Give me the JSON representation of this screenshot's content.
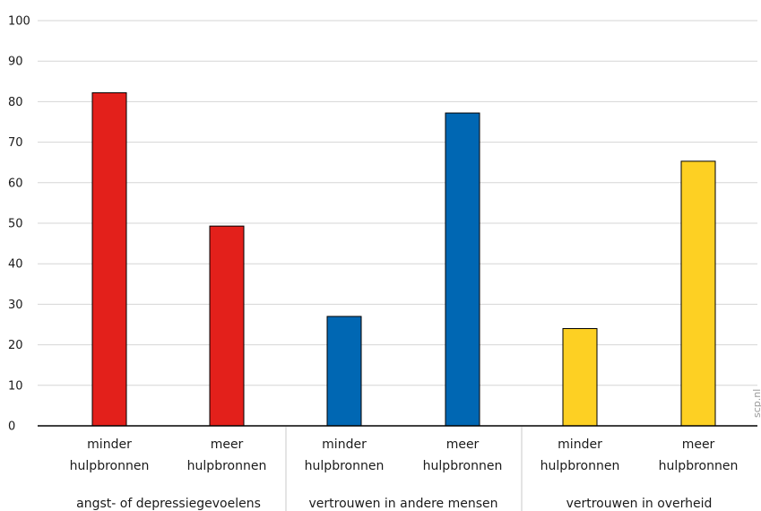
{
  "chart_data": {
    "type": "bar",
    "ylim": [
      0,
      100
    ],
    "yticks": [
      0,
      10,
      20,
      30,
      40,
      50,
      60,
      70,
      80,
      90,
      100
    ],
    "grid": true,
    "bars": [
      {
        "group": 0,
        "label": [
          "minder",
          "hulpbronnen"
        ],
        "value": 82.2,
        "color": "#e3201b"
      },
      {
        "group": 0,
        "label": [
          "meer",
          "hulpbronnen"
        ],
        "value": 49.3,
        "color": "#e3201b"
      },
      {
        "group": 1,
        "label": [
          "minder",
          "hulpbronnen"
        ],
        "value": 27.0,
        "color": "#0067b3"
      },
      {
        "group": 1,
        "label": [
          "meer",
          "hulpbronnen"
        ],
        "value": 77.2,
        "color": "#0067b3"
      },
      {
        "group": 2,
        "label": [
          "minder",
          "hulpbronnen"
        ],
        "value": 24.0,
        "color": "#fdd023"
      },
      {
        "group": 2,
        "label": [
          "meer",
          "hulpbronnen"
        ],
        "value": 65.3,
        "color": "#fdd023"
      }
    ],
    "groups": [
      "angst- of depressiegevoelens",
      "vertrouwen in andere mensen",
      "vertrouwen in overheid"
    ]
  },
  "watermark": "scp.nl"
}
